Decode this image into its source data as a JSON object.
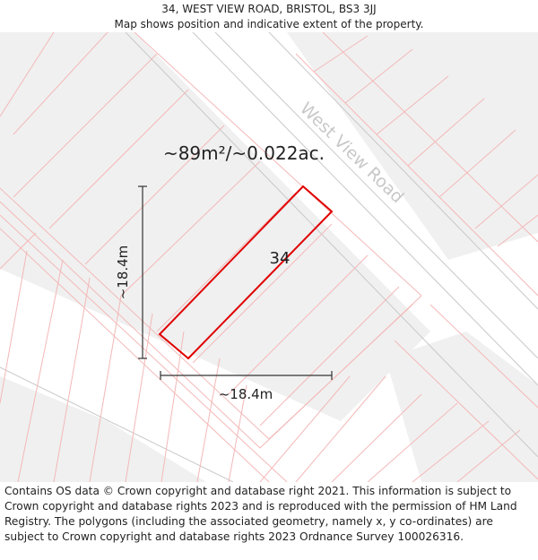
{
  "header": {
    "title": "34, WEST VIEW ROAD, BRISTOL, BS3 3JJ",
    "subtitle": "Map shows position and indicative extent of the property."
  },
  "map": {
    "area_label": "~89m²/~0.022ac.",
    "road_label": "West View Road",
    "plot_number": "34",
    "vertical_dimension": "~18.4m",
    "horizontal_dimension": "~18.4m",
    "colors": {
      "plot_outline": "#e00000",
      "parcel_lines": "#f4b8b8",
      "building_fill": "#f0f0f0",
      "road_edges": "#c8c8c8",
      "road_label": "#c8c8c8",
      "dimension_lines": "#333333"
    }
  },
  "footer": {
    "attribution": "Contains OS data © Crown copyright and database right 2021. This information is subject to Crown copyright and database rights 2023 and is reproduced with the permission of HM Land Registry. The polygons (including the associated geometry, namely x, y co-ordinates) are subject to Crown copyright and database rights 2023 Ordnance Survey 100026316."
  }
}
